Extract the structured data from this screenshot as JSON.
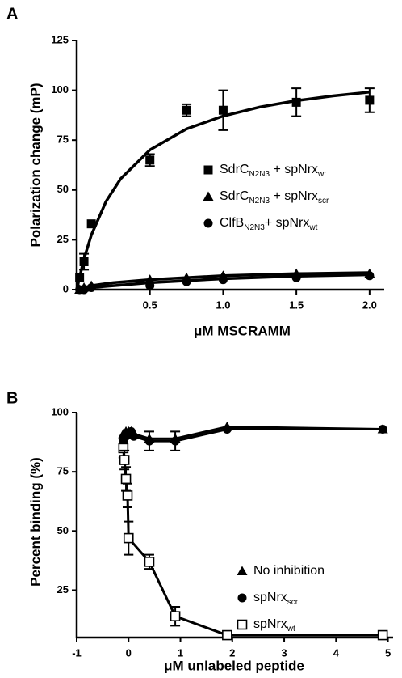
{
  "chart_data": [
    {
      "type": "scatter",
      "panel_label": "A",
      "xlabel": "μM MSCRAMM",
      "ylabel": "Polarization change (mP)",
      "xlim": [
        0,
        2.1
      ],
      "ylim": [
        0,
        125
      ],
      "xticks": [
        0.5,
        {
          "value": 1,
          "label": "1.0"
        },
        1.5,
        {
          "value": 2,
          "label": "2.0"
        }
      ],
      "yticks": [
        0,
        25,
        50,
        75,
        100,
        125
      ],
      "series": [
        {
          "name": [
            "SdrC",
            "N2N3",
            " + spNrx",
            "wt"
          ],
          "marker": "square",
          "color": "#000000",
          "x": [
            0.02,
            0.05,
            0.1,
            0.5,
            0.75,
            1.0,
            1.5,
            2.0
          ],
          "values": [
            6,
            14,
            33,
            65,
            90,
            90,
            94,
            95
          ],
          "errors": [
            null,
            4,
            null,
            3,
            3,
            10,
            7,
            6
          ]
        },
        {
          "name": [
            "SdrC",
            "N2N3",
            " + spNrx",
            "scr"
          ],
          "marker": "triangle",
          "color": "#000000",
          "x": [
            0.02,
            0.05,
            0.1,
            0.5,
            0.75,
            1.0,
            1.5,
            2.0
          ],
          "values": [
            0,
            1,
            2,
            5,
            6,
            7,
            8,
            8
          ]
        },
        {
          "name": [
            "ClfB",
            "N2N3",
            "+ spNrx",
            "wt"
          ],
          "marker": "circle",
          "color": "#000000",
          "x": [
            0.02,
            0.05,
            0.1,
            0.5,
            0.75,
            1.0,
            1.5,
            2.0
          ],
          "values": [
            0,
            0,
            1,
            2,
            4,
            5,
            6,
            7
          ]
        }
      ],
      "fits": [
        {
          "x": [
            0,
            0.05,
            0.1,
            0.2,
            0.3,
            0.5,
            0.75,
            1,
            1.25,
            1.5,
            1.75,
            2
          ],
          "values": [
            0,
            15.5,
            27.4,
            44.2,
            55.6,
            70.1,
            80.6,
            87.1,
            91.6,
            94.8,
            97.2,
            99.1
          ]
        },
        {
          "x": [
            0,
            0.1,
            0.25,
            0.5,
            1,
            1.5,
            2
          ],
          "values": [
            0,
            2,
            3.5,
            5,
            7,
            8,
            8.5
          ]
        },
        {
          "x": [
            0,
            0.1,
            0.25,
            0.5,
            1,
            1.5,
            2
          ],
          "values": [
            0,
            1,
            2,
            3.5,
            5.5,
            6.8,
            7.5
          ]
        }
      ]
    },
    {
      "type": "line",
      "panel_label": "B",
      "xlabel": "μM unlabeled peptide",
      "ylabel": "Percent binding (%)",
      "xlim": [
        -1,
        5.1
      ],
      "ylim": [
        5,
        100
      ],
      "xticks": [
        -1,
        0,
        1,
        2,
        3,
        4,
        5
      ],
      "yticks": [
        25,
        50,
        75,
        100
      ],
      "series": [
        {
          "name": [
            "No inhibition"
          ],
          "marker": "triangle",
          "color": "#000000",
          "x": [
            -0.1,
            -0.05,
            0,
            0.05,
            0.1,
            0.4,
            0.9,
            1.9,
            4.9
          ],
          "values": [
            91,
            92,
            92,
            92,
            91,
            89,
            89,
            94,
            93
          ]
        },
        {
          "name": [
            "spNrx",
            "scr"
          ],
          "marker": "circle",
          "color": "#000000",
          "x": [
            -0.1,
            -0.05,
            0,
            0.05,
            0.1,
            0.4,
            0.9,
            1.9,
            4.9
          ],
          "values": [
            88,
            90,
            91,
            92,
            90,
            88,
            88,
            93,
            93
          ],
          "errors": [
            null,
            null,
            null,
            null,
            null,
            4,
            4,
            null,
            null
          ]
        },
        {
          "name": [
            "spNrx",
            "wt"
          ],
          "marker": "open-square",
          "color": "#000000",
          "x": [
            -0.1,
            -0.08,
            -0.05,
            -0.02,
            0,
            0.4,
            0.9,
            1.9,
            4.9
          ],
          "values": [
            85,
            80,
            72,
            65,
            47,
            37,
            14,
            6,
            6
          ],
          "errors": [
            4,
            4,
            5,
            5,
            7,
            3,
            4,
            null,
            null
          ]
        }
      ]
    }
  ]
}
